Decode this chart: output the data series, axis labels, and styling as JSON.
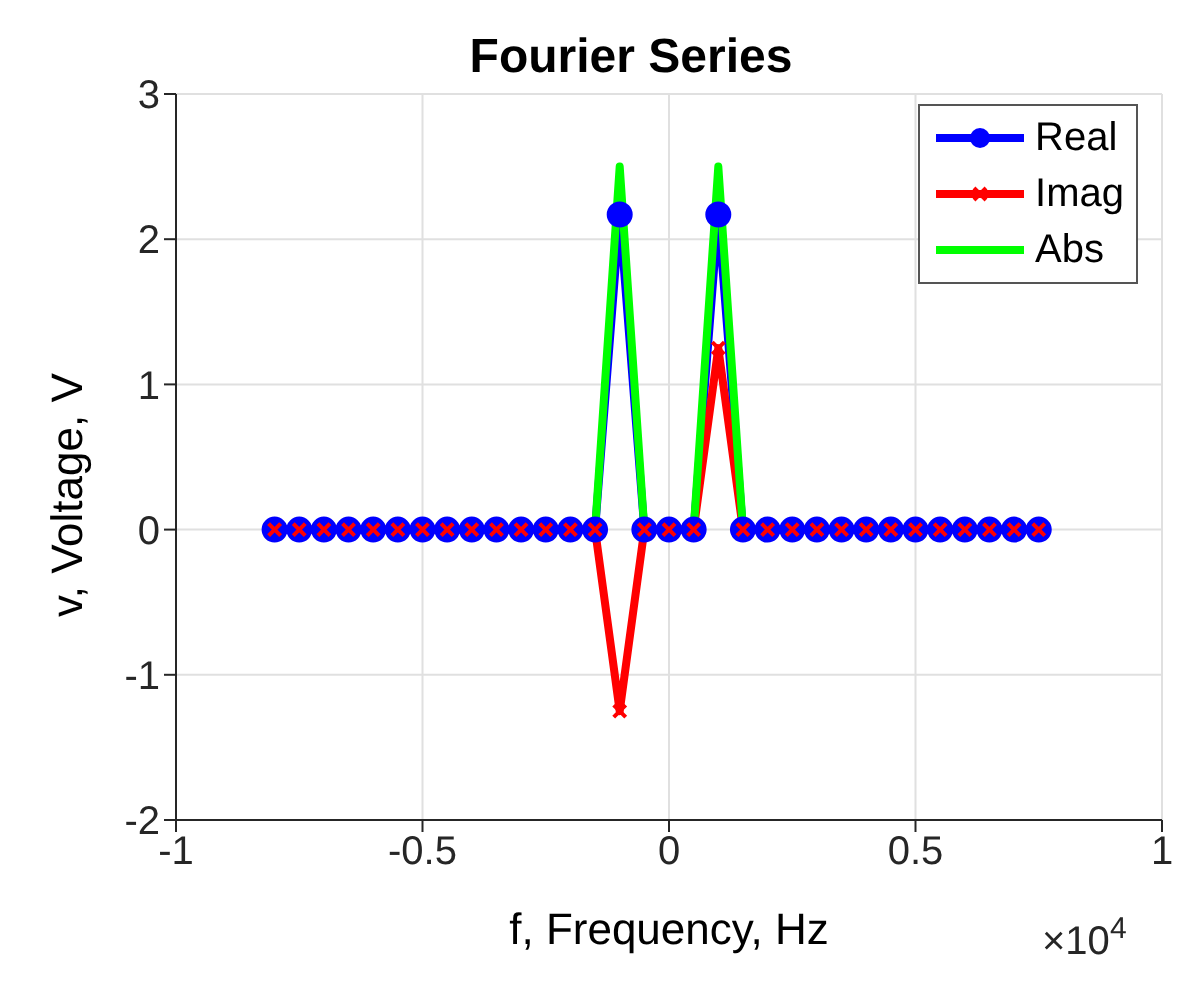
{
  "chart_data": {
    "type": "line",
    "title": "Fourier Series",
    "xlabel": "f, Frequency, Hz",
    "ylabel": "v, Voltage, V",
    "x": [
      -0.8,
      -0.75,
      -0.7,
      -0.65,
      -0.6,
      -0.55,
      -0.5,
      -0.45,
      -0.4,
      -0.35,
      -0.3,
      -0.25,
      -0.2,
      -0.15,
      -0.1,
      -0.05,
      0,
      0.05,
      0.1,
      0.15,
      0.2,
      0.25,
      0.3,
      0.35,
      0.4,
      0.45,
      0.5,
      0.55,
      0.6,
      0.65,
      0.7,
      0.75
    ],
    "series": [
      {
        "name": "Real",
        "color": "#0000ff",
        "marker": "circle",
        "values": [
          0,
          0,
          0,
          0,
          0,
          0,
          0,
          0,
          0,
          0,
          0,
          0,
          0,
          0,
          2.17,
          0,
          0,
          0,
          2.17,
          0,
          0,
          0,
          0,
          0,
          0,
          0,
          0,
          0,
          0,
          0,
          0,
          0
        ]
      },
      {
        "name": "Imag",
        "color": "#ff0000",
        "marker": "cross",
        "values": [
          0,
          0,
          0,
          0,
          0,
          0,
          0,
          0,
          0,
          0,
          0,
          0,
          0,
          0,
          -1.25,
          0,
          0,
          0,
          1.25,
          0,
          0,
          0,
          0,
          0,
          0,
          0,
          0,
          0,
          0,
          0,
          0,
          0
        ]
      },
      {
        "name": "Abs",
        "color": "#00ff00",
        "marker": "none",
        "values": [
          null,
          null,
          null,
          null,
          null,
          null,
          null,
          null,
          null,
          null,
          null,
          null,
          null,
          0,
          2.5,
          0,
          null,
          0,
          2.5,
          0,
          null,
          null,
          null,
          null,
          null,
          null,
          null,
          null,
          null,
          null,
          null,
          null
        ]
      }
    ],
    "xlim": [
      -1,
      1
    ],
    "xticks": [
      -1,
      -0.5,
      0,
      0.5,
      1
    ],
    "ylim": [
      -2,
      3
    ],
    "yticks": [
      -2,
      -1,
      0,
      1,
      2,
      3
    ],
    "annotations": [
      "×10$^{4}$"
    ],
    "grid": true,
    "legend": "top right",
    "line_style": "solid"
  }
}
